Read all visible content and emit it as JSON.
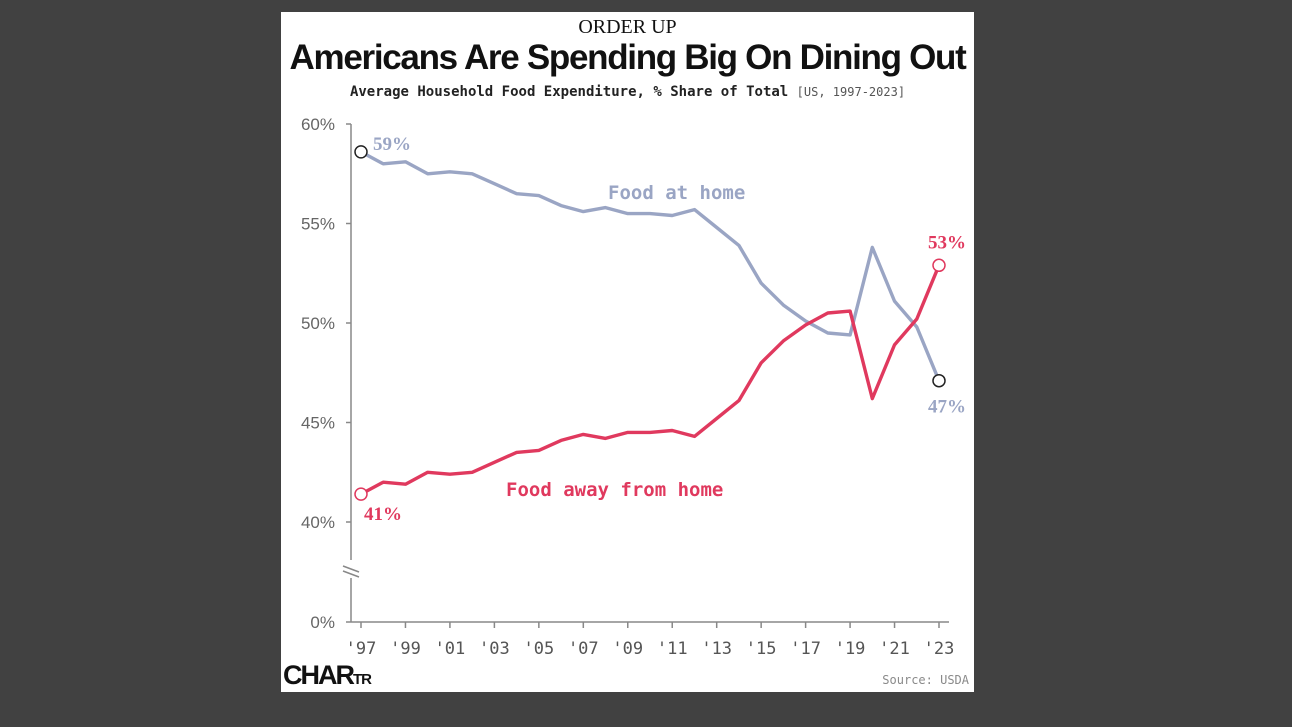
{
  "header": {
    "kicker": "ORDER UP",
    "title": "Americans Are Spending Big On Dining Out",
    "subtitle": "Average Household Food Expenditure, % Share of Total",
    "subtitle_range": "[US, 1997-2023]"
  },
  "footer": {
    "logo_main": "CHAR",
    "logo_tail": "TR",
    "source": "Source: USDA"
  },
  "colors": {
    "food_at_home": "#9aa5c4",
    "food_away": "#e0395e",
    "axis": "#888888",
    "background": "#ffffff",
    "page_background": "#414141"
  },
  "chart_data": {
    "type": "line",
    "title": "Americans Are Spending Big On Dining Out",
    "subtitle": "Average Household Food Expenditure, % Share of Total",
    "xlabel": "",
    "ylabel": "",
    "x": [
      1997,
      1998,
      1999,
      2000,
      2001,
      2002,
      2003,
      2004,
      2005,
      2006,
      2007,
      2008,
      2009,
      2010,
      2011,
      2012,
      2013,
      2014,
      2015,
      2016,
      2017,
      2018,
      2019,
      2020,
      2021,
      2022,
      2023
    ],
    "x_tick_labels": [
      "'97",
      "'99",
      "'01",
      "'03",
      "'05",
      "'07",
      "'09",
      "'11",
      "'13",
      "'15",
      "'17",
      "'19",
      "'21",
      "'23"
    ],
    "x_tick_years": [
      1997,
      1999,
      2001,
      2003,
      2005,
      2007,
      2009,
      2011,
      2013,
      2015,
      2017,
      2019,
      2021,
      2023
    ],
    "y_tick_labels": [
      "0%",
      "40%",
      "45%",
      "50%",
      "55%",
      "60%"
    ],
    "y_tick_values": [
      0,
      40,
      45,
      50,
      55,
      60
    ],
    "y_axis_broken": true,
    "ylim": [
      40,
      60
    ],
    "grid": false,
    "legend": "inline labels",
    "series": [
      {
        "name": "Food at home",
        "color": "#9aa5c4",
        "values": [
          58.6,
          58.0,
          58.1,
          57.5,
          57.6,
          57.5,
          57.0,
          56.5,
          56.4,
          55.9,
          55.6,
          55.8,
          55.5,
          55.5,
          55.4,
          55.7,
          54.8,
          53.9,
          52.0,
          50.9,
          50.1,
          49.5,
          49.4,
          53.8,
          51.1,
          49.8,
          47.1
        ],
        "start_label": "59%",
        "end_label": "47%"
      },
      {
        "name": "Food away from home",
        "color": "#e0395e",
        "values": [
          41.4,
          42.0,
          41.9,
          42.5,
          42.4,
          42.5,
          43.0,
          43.5,
          43.6,
          44.1,
          44.4,
          44.2,
          44.5,
          44.5,
          44.6,
          44.3,
          45.2,
          46.1,
          48.0,
          49.1,
          49.9,
          50.5,
          50.6,
          46.2,
          48.9,
          50.2,
          52.9
        ],
        "start_label": "41%",
        "end_label": "53%"
      }
    ]
  }
}
